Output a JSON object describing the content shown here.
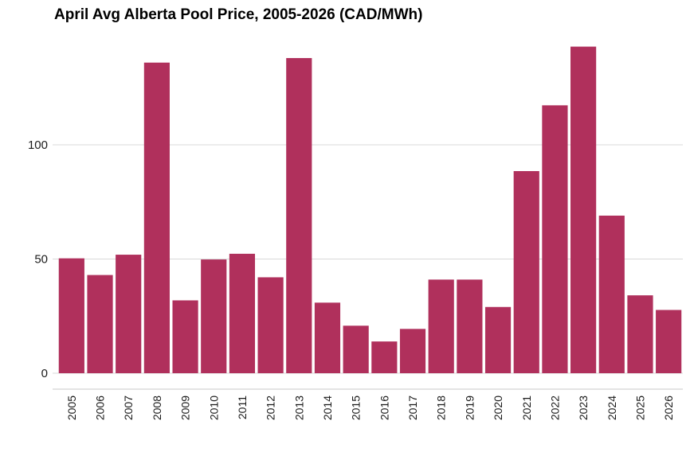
{
  "chart_data": {
    "type": "bar",
    "title": "April Avg Alberta Pool Price, 2005-2026 (CAD/MWh)",
    "xlabel": "",
    "ylabel": "",
    "categories": [
      "2005",
      "2006",
      "2007",
      "2008",
      "2009",
      "2010",
      "2011",
      "2012",
      "2013",
      "2014",
      "2015",
      "2016",
      "2017",
      "2018",
      "2019",
      "2020",
      "2021",
      "2022",
      "2023",
      "2024",
      "2025",
      "2026"
    ],
    "values": [
      50.3,
      43.0,
      51.9,
      136.0,
      31.9,
      49.8,
      52.3,
      42.0,
      138.0,
      30.9,
      20.8,
      13.9,
      19.4,
      41.0,
      41.0,
      29.0,
      88.5,
      117.3,
      143.0,
      69.0,
      34.1,
      27.7
    ],
    "yticks": [
      0,
      50,
      100
    ],
    "ylim": [
      -7,
      150
    ],
    "grid": "horizontal",
    "colors": {
      "bar": "#B0305C",
      "grid": "#D9D9D9",
      "axis": "#C8C8C8"
    }
  }
}
